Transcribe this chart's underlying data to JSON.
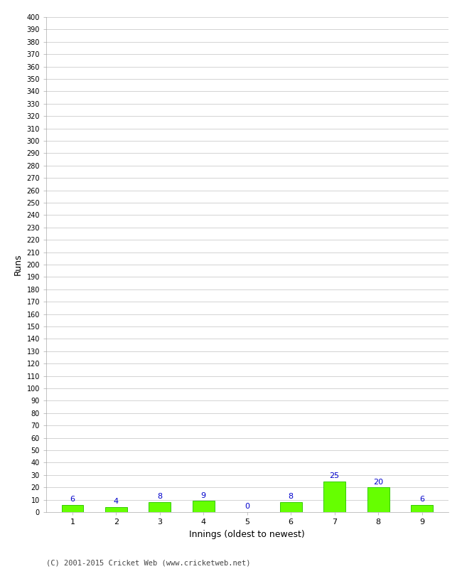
{
  "categories": [
    "1",
    "2",
    "3",
    "4",
    "5",
    "6",
    "7",
    "8",
    "9"
  ],
  "values": [
    6,
    4,
    8,
    9,
    0,
    8,
    25,
    20,
    6
  ],
  "bar_color": "#66ff00",
  "bar_edge_color": "#33cc00",
  "label_color": "#0000cc",
  "ylabel": "Runs",
  "xlabel": "Innings (oldest to newest)",
  "ylim": [
    0,
    400
  ],
  "background_color": "#ffffff",
  "grid_color": "#cccccc",
  "footer": "(C) 2001-2015 Cricket Web (www.cricketweb.net)"
}
